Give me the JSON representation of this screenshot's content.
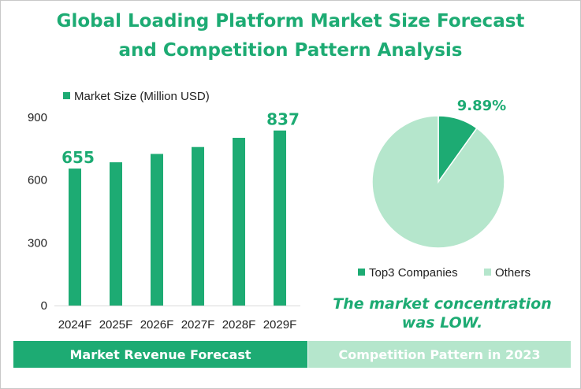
{
  "title": {
    "line1": "Global Loading Platform Market Size Forecast",
    "line2": "and Competition Pattern Analysis"
  },
  "colors": {
    "primary": "#1dab73",
    "light": "#b5e6cc"
  },
  "chart_data": [
    {
      "type": "bar",
      "categories": [
        "2024F",
        "2025F",
        "2026F",
        "2027F",
        "2028F",
        "2029F"
      ],
      "series": [
        {
          "name": "Market Size (Million USD)",
          "values": [
            655,
            685,
            725,
            758,
            802,
            837
          ]
        }
      ],
      "data_labels": [
        "655",
        "",
        "",
        "",
        "",
        "837"
      ],
      "yticks": [
        "0",
        "300",
        "600",
        "900"
      ],
      "ylim": [
        0,
        900
      ],
      "grid": false,
      "legend_position": "top"
    },
    {
      "type": "pie",
      "labels": [
        "Top3 Companies",
        "Others"
      ],
      "values": [
        9.89,
        90.11
      ],
      "data_labels": [
        "9.89%"
      ],
      "legend_position": "bottom"
    }
  ],
  "note": {
    "line1": "The market concentration",
    "line2": "was LOW."
  },
  "footer": {
    "left": "Market Revenue Forecast",
    "right": "Competition Pattern in 2023"
  }
}
